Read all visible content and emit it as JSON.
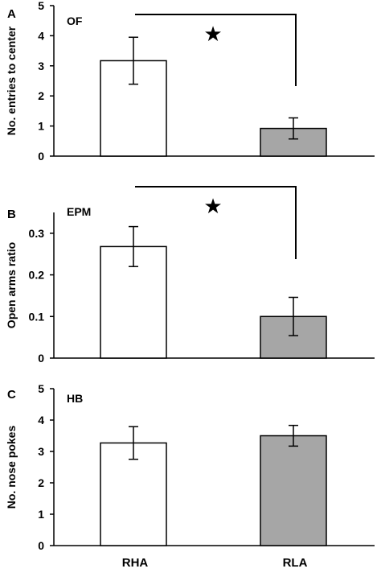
{
  "chart_data": [
    {
      "type": "bar",
      "panel": "A",
      "test": "OF",
      "ylabel": "No. entries to center",
      "ylim": [
        0,
        5
      ],
      "yticks": [
        "0",
        "1",
        "2",
        "3",
        "4",
        "5"
      ],
      "tickvals": [
        0,
        1,
        2,
        3,
        4,
        5
      ],
      "categories": [
        "RHA",
        "RLA"
      ],
      "values": [
        3.17,
        0.92
      ],
      "errors": [
        0.78,
        0.35
      ],
      "colors": [
        "#ffffff",
        "#a6a6a6"
      ],
      "significance": "★"
    },
    {
      "type": "bar",
      "panel": "B",
      "test": "EPM",
      "ylabel": "Open arms ratio",
      "ylim": [
        0,
        0.35
      ],
      "yticks": [
        "0",
        "0.1",
        "0.2",
        "0.3"
      ],
      "tickvals": [
        0,
        0.1,
        0.2,
        0.3
      ],
      "categories": [
        "RHA",
        "RLA"
      ],
      "values": [
        0.268,
        0.1
      ],
      "errors": [
        0.048,
        0.046
      ],
      "colors": [
        "#ffffff",
        "#a6a6a6"
      ],
      "significance": "★"
    },
    {
      "type": "bar",
      "panel": "C",
      "test": "HB",
      "ylabel": "No. nose pokes",
      "ylim": [
        0,
        5
      ],
      "yticks": [
        "0",
        "1",
        "2",
        "3",
        "4",
        "5"
      ],
      "tickvals": [
        0,
        1,
        2,
        3,
        4,
        5
      ],
      "categories": [
        "RHA",
        "RLA"
      ],
      "values": [
        3.27,
        3.5
      ],
      "errors": [
        0.52,
        0.33
      ],
      "colors": [
        "#ffffff",
        "#a6a6a6"
      ],
      "significance": ""
    }
  ],
  "x_categories": [
    "RHA",
    "RLA"
  ]
}
